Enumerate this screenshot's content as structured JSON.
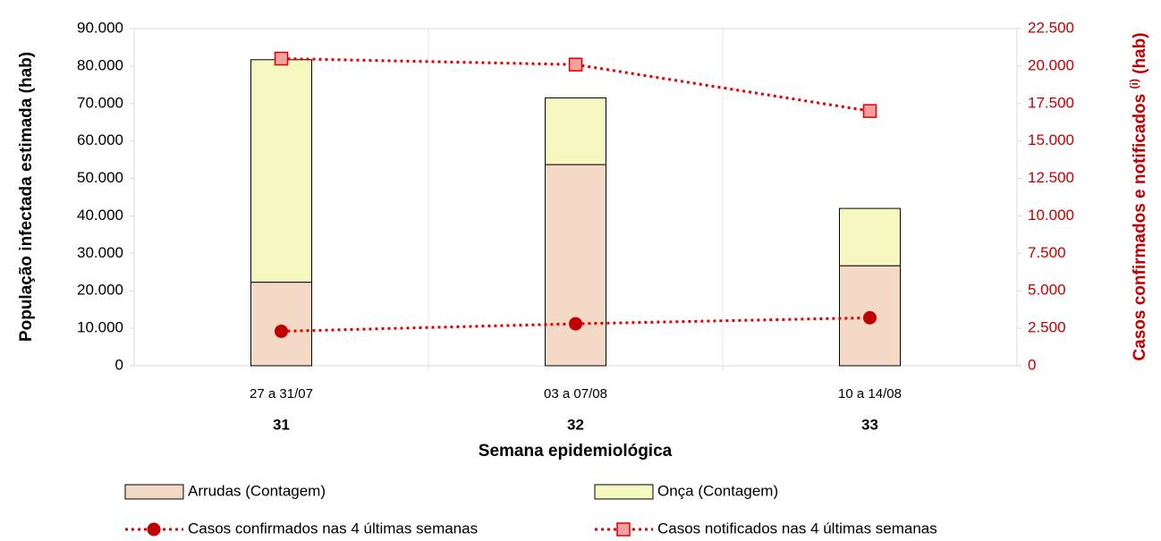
{
  "chart_data": {
    "type": "bar",
    "categories": [
      "27 a 31/07",
      "03 a 07/08",
      "10 a 14/08"
    ],
    "weeks": [
      "31",
      "32",
      "33"
    ],
    "xlabel": "Semana epidemiológica",
    "ylabel": "População infectada estimada (hab)",
    "y2label": {
      "text": "Casos confirmados e notificados",
      "superscript": "(i)",
      "suffix": "(hab)"
    },
    "stacked": true,
    "series": [
      {
        "name": "Arrudas (Contagem)",
        "color": "#f4d9c6",
        "values": [
          22300,
          53700,
          26700
        ]
      },
      {
        "name": "Onça (Contagem)",
        "color": "#f7f7c0",
        "values": [
          59400,
          17800,
          15300
        ]
      },
      {
        "name": "Casos confirmados nas 4 últimas semanas",
        "type": "line",
        "axis": "y2",
        "marker": "circle",
        "color": "#e00000",
        "values": [
          2300,
          2800,
          3200
        ]
      },
      {
        "name": "Casos notificados nas 4 últimas semanas",
        "type": "line",
        "axis": "y2",
        "marker": "square",
        "color": "#e00000",
        "values": [
          20500,
          20100,
          17000
        ]
      }
    ],
    "ylim": [
      0,
      90000
    ],
    "yticks": [
      0,
      {
        "value": 10000,
        "label": "10.000"
      },
      {
        "value": 20000,
        "label": "20.000"
      },
      {
        "value": 30000,
        "label": "30.000"
      },
      {
        "value": 40000,
        "label": "40.000"
      },
      {
        "value": 50000,
        "label": "50.000"
      },
      {
        "value": 60000,
        "label": "60.000"
      },
      {
        "value": 70000,
        "label": "70.000"
      },
      {
        "value": 80000,
        "label": "80.000"
      },
      {
        "value": 90000,
        "label": "90.000"
      }
    ],
    "y2lim": [
      0,
      22500
    ],
    "y2ticks": [
      0,
      {
        "value": 2500,
        "label": "2.500"
      },
      {
        "value": 5000,
        "label": "5.000"
      },
      {
        "value": 7500,
        "label": "7.500"
      },
      {
        "value": 10000,
        "label": "10.000"
      },
      {
        "value": 12500,
        "label": "12.500"
      },
      {
        "value": 15000,
        "label": "15.000"
      },
      {
        "value": 17500,
        "label": "17.500"
      },
      {
        "value": 20000,
        "label": "20.000"
      },
      {
        "value": 22500,
        "label": "22.500"
      }
    ],
    "y2color": "#c00000"
  }
}
